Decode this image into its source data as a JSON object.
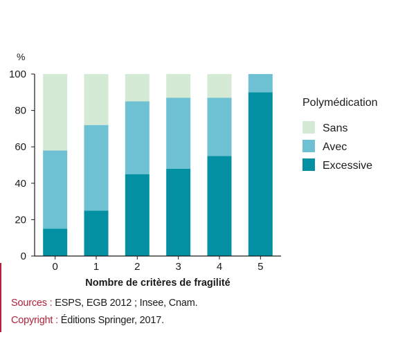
{
  "chart_data": {
    "type": "bar",
    "stacked": true,
    "unit": "%",
    "xlabel": "Nombre de critères de fragilité",
    "ylabel": "",
    "categories": [
      "0",
      "1",
      "2",
      "3",
      "4",
      "5"
    ],
    "ylim": [
      0,
      100
    ],
    "yticks": [
      0,
      20,
      40,
      60,
      80,
      100
    ],
    "legend_title": "Polymédication",
    "legend_position": "right",
    "series": [
      {
        "name": "Excessive",
        "color": "#0390a3",
        "values": [
          15,
          25,
          45,
          48,
          55,
          90
        ]
      },
      {
        "name": "Avec",
        "color": "#6ec1d2",
        "values": [
          43,
          47,
          40,
          39,
          32,
          10
        ]
      },
      {
        "name": "Sans",
        "color": "#d5ead4",
        "values": [
          42,
          28,
          15,
          13,
          13,
          0
        ]
      }
    ],
    "legend_order": [
      "Sans",
      "Avec",
      "Excessive"
    ],
    "grid": false
  },
  "footer": {
    "sources_label": "Sources :",
    "sources_text": " ESPS, EGB 2012 ; Insee, Cnam.",
    "copyright_label": "Copyright :",
    "copyright_text": " Éditions Springer, 2017."
  },
  "colors": {
    "accent": "#b0223a",
    "axis": "#1a1a1a"
  }
}
